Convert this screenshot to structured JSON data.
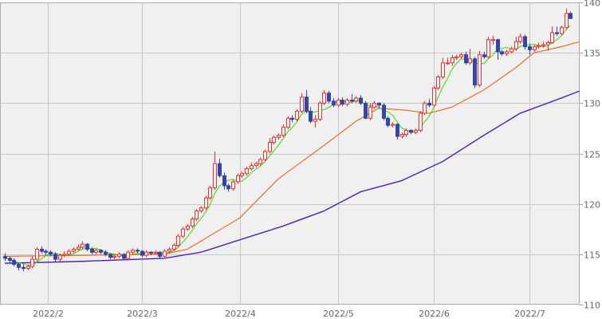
{
  "chart_data": {
    "type": "candlestick",
    "title": "",
    "ylim": [
      110,
      140
    ],
    "y_ticks": [
      "110",
      "115",
      "120",
      "125",
      "130",
      "135",
      "140"
    ],
    "x_ticks": [
      {
        "label": "2022/2",
        "index": 9.5
      },
      {
        "label": "2022/3",
        "index": 30
      },
      {
        "label": "2022/4",
        "index": 51.5
      },
      {
        "label": "2022/5",
        "index": 73
      },
      {
        "label": "2022/6",
        "index": 94
      },
      {
        "label": "2022/7",
        "index": 115
      }
    ],
    "grid": true,
    "colors": {
      "up": "#ff2a2a",
      "down": "#3344aa",
      "ma_short": "#33dd00",
      "ma_mid": "#ee5500",
      "ma_long": "#4411bb",
      "background": "#f0f0f0",
      "grid": "#c8c8c8"
    },
    "candles": [
      [
        114.8,
        115.1,
        114.3,
        114.6
      ],
      [
        114.6,
        114.8,
        114.1,
        114.4
      ],
      [
        114.4,
        114.6,
        113.8,
        114.0
      ],
      [
        114.0,
        114.2,
        113.4,
        113.7
      ],
      [
        113.7,
        114.0,
        113.3,
        113.6
      ],
      [
        113.6,
        114.0,
        113.4,
        113.8
      ],
      [
        113.8,
        114.8,
        113.6,
        114.5
      ],
      [
        114.5,
        115.7,
        114.3,
        115.5
      ],
      [
        115.5,
        115.8,
        115.1,
        115.3
      ],
      [
        115.3,
        115.5,
        114.9,
        115.2
      ],
      [
        115.2,
        115.4,
        114.8,
        115.0
      ],
      [
        115.0,
        115.2,
        114.2,
        114.5
      ],
      [
        114.5,
        115.1,
        114.3,
        114.9
      ],
      [
        114.9,
        115.3,
        114.7,
        115.0
      ],
      [
        115.0,
        115.5,
        114.8,
        115.3
      ],
      [
        115.3,
        115.7,
        115.1,
        115.5
      ],
      [
        115.5,
        116.0,
        115.3,
        115.7
      ],
      [
        115.7,
        116.3,
        115.5,
        116.0
      ],
      [
        116.0,
        116.1,
        115.3,
        115.5
      ],
      [
        115.5,
        115.7,
        115.0,
        115.2
      ],
      [
        115.2,
        115.6,
        115.0,
        115.4
      ],
      [
        115.4,
        115.5,
        115.0,
        115.2
      ],
      [
        115.2,
        115.4,
        114.8,
        115.0
      ],
      [
        115.0,
        115.1,
        114.5,
        114.7
      ],
      [
        114.7,
        115.0,
        114.5,
        114.8
      ],
      [
        114.8,
        115.2,
        114.6,
        115.0
      ],
      [
        115.0,
        115.1,
        114.4,
        114.6
      ],
      [
        114.6,
        115.4,
        114.4,
        115.2
      ],
      [
        115.2,
        115.6,
        115.0,
        115.4
      ],
      [
        115.4,
        115.6,
        115.1,
        115.3
      ],
      [
        115.3,
        115.4,
        114.7,
        114.9
      ],
      [
        114.9,
        115.4,
        114.7,
        115.2
      ],
      [
        115.2,
        115.3,
        114.9,
        115.1
      ],
      [
        115.1,
        115.4,
        115.0,
        115.2
      ],
      [
        115.2,
        115.3,
        114.5,
        114.8
      ],
      [
        114.8,
        115.5,
        114.7,
        115.3
      ],
      [
        115.3,
        115.7,
        115.1,
        115.5
      ],
      [
        115.5,
        116.1,
        115.3,
        115.9
      ],
      [
        115.9,
        117.0,
        115.7,
        116.8
      ],
      [
        116.8,
        117.7,
        116.6,
        117.5
      ],
      [
        117.5,
        118.0,
        117.3,
        117.8
      ],
      [
        117.8,
        118.7,
        117.6,
        118.5
      ],
      [
        118.5,
        119.5,
        118.3,
        119.3
      ],
      [
        119.3,
        119.8,
        119.1,
        119.6
      ],
      [
        119.6,
        120.8,
        119.4,
        120.6
      ],
      [
        120.6,
        121.8,
        120.4,
        121.6
      ],
      [
        121.6,
        125.2,
        121.4,
        124.0
      ],
      [
        124.0,
        124.5,
        122.6,
        122.8
      ],
      [
        122.8,
        123.1,
        121.4,
        121.8
      ],
      [
        121.8,
        122.0,
        121.2,
        121.5
      ],
      [
        121.5,
        122.4,
        121.3,
        122.2
      ],
      [
        122.2,
        123.0,
        122.0,
        122.8
      ],
      [
        122.8,
        123.2,
        122.6,
        123.0
      ],
      [
        123.0,
        123.7,
        122.8,
        123.5
      ],
      [
        123.5,
        124.1,
        123.3,
        123.8
      ],
      [
        123.8,
        124.2,
        123.6,
        124.0
      ],
      [
        124.0,
        124.6,
        123.8,
        124.4
      ],
      [
        124.4,
        125.4,
        124.2,
        125.2
      ],
      [
        125.2,
        126.5,
        125.0,
        126.1
      ],
      [
        126.1,
        126.8,
        125.9,
        126.6
      ],
      [
        126.6,
        127.0,
        126.4,
        126.8
      ],
      [
        126.8,
        127.9,
        126.6,
        127.6
      ],
      [
        127.6,
        128.7,
        127.4,
        128.5
      ],
      [
        128.5,
        128.8,
        128.1,
        128.4
      ],
      [
        128.4,
        129.4,
        128.2,
        129.2
      ],
      [
        129.2,
        131.0,
        129.0,
        130.6
      ],
      [
        130.6,
        131.3,
        129.0,
        129.2
      ],
      [
        129.2,
        129.6,
        128.0,
        128.2
      ],
      [
        128.2,
        128.8,
        127.6,
        128.4
      ],
      [
        128.4,
        130.2,
        128.2,
        130.0
      ],
      [
        130.0,
        131.3,
        129.8,
        131.0
      ],
      [
        131.0,
        131.2,
        130.0,
        130.2
      ],
      [
        130.2,
        130.5,
        129.6,
        129.8
      ],
      [
        129.8,
        130.5,
        129.6,
        130.3
      ],
      [
        130.3,
        130.6,
        129.7,
        129.9
      ],
      [
        129.9,
        130.5,
        129.7,
        130.3
      ],
      [
        130.3,
        130.9,
        130.0,
        130.2
      ],
      [
        130.2,
        130.7,
        130.0,
        130.5
      ],
      [
        130.5,
        130.8,
        129.8,
        130.0
      ],
      [
        130.0,
        130.2,
        128.4,
        128.5
      ],
      [
        128.5,
        130.0,
        128.3,
        129.6
      ],
      [
        129.6,
        130.2,
        129.4,
        130.0
      ],
      [
        130.0,
        130.1,
        129.5,
        129.8
      ],
      [
        129.8,
        130.0,
        128.3,
        128.5
      ],
      [
        128.5,
        128.7,
        127.6,
        127.8
      ],
      [
        127.8,
        128.1,
        127.6,
        127.9
      ],
      [
        127.9,
        128.0,
        126.4,
        126.7
      ],
      [
        126.7,
        127.1,
        126.5,
        126.9
      ],
      [
        126.9,
        127.5,
        126.7,
        127.3
      ],
      [
        127.3,
        127.4,
        126.9,
        127.1
      ],
      [
        127.1,
        127.5,
        126.9,
        127.3
      ],
      [
        127.3,
        129.2,
        127.1,
        129.0
      ],
      [
        129.0,
        130.2,
        128.8,
        130.0
      ],
      [
        130.0,
        130.4,
        129.6,
        129.8
      ],
      [
        129.8,
        131.7,
        129.6,
        131.5
      ],
      [
        131.5,
        132.8,
        131.3,
        132.6
      ],
      [
        132.6,
        134.5,
        132.4,
        134.0
      ],
      [
        134.0,
        134.5,
        133.8,
        134.0
      ],
      [
        134.0,
        134.8,
        133.7,
        134.5
      ],
      [
        134.5,
        134.8,
        134.3,
        134.6
      ],
      [
        134.6,
        135.0,
        134.4,
        134.8
      ],
      [
        134.8,
        135.1,
        133.8,
        134.0
      ],
      [
        134.0,
        135.4,
        133.8,
        134.4
      ],
      [
        134.4,
        134.6,
        131.5,
        131.8
      ],
      [
        131.8,
        135.2,
        131.6,
        134.8
      ],
      [
        134.8,
        135.1,
        134.4,
        134.6
      ],
      [
        134.6,
        136.6,
        134.4,
        136.3
      ],
      [
        136.3,
        136.7,
        135.8,
        136.3
      ],
      [
        136.3,
        136.4,
        134.3,
        135.1
      ],
      [
        135.1,
        135.3,
        134.7,
        134.9
      ],
      [
        134.9,
        135.3,
        134.7,
        135.1
      ],
      [
        135.1,
        135.6,
        134.9,
        135.4
      ],
      [
        135.4,
        136.6,
        135.2,
        136.1
      ],
      [
        136.1,
        136.9,
        135.9,
        136.6
      ],
      [
        136.6,
        136.8,
        135.3,
        135.6
      ],
      [
        135.6,
        135.9,
        134.8,
        135.3
      ],
      [
        135.3,
        135.8,
        135.1,
        135.6
      ],
      [
        135.6,
        136.0,
        135.4,
        135.7
      ],
      [
        135.7,
        136.1,
        135.5,
        135.8
      ],
      [
        135.8,
        136.2,
        135.2,
        136.0
      ],
      [
        136.0,
        137.6,
        135.9,
        137.0
      ],
      [
        137.0,
        137.6,
        136.7,
        136.9
      ],
      [
        136.9,
        137.7,
        136.7,
        137.5
      ],
      [
        137.5,
        139.4,
        137.3,
        138.9
      ],
      [
        138.9,
        139.1,
        138.4,
        138.4
      ]
    ],
    "ma_mid": [
      [
        0,
        114.8
      ],
      [
        35,
        115.0
      ],
      [
        40,
        115.5
      ],
      [
        51.5,
        118.6
      ],
      [
        60,
        122.5
      ],
      [
        70,
        125.8
      ],
      [
        77,
        128.2
      ],
      [
        82,
        129.5
      ],
      [
        88,
        129.3
      ],
      [
        93,
        129.0
      ],
      [
        98,
        129.6
      ],
      [
        105,
        131.3
      ],
      [
        112,
        133.5
      ],
      [
        116,
        135.0
      ],
      [
        122,
        135.6
      ],
      [
        126,
        136.1
      ]
    ],
    "ma_long": [
      [
        0,
        114.1
      ],
      [
        17,
        114.3
      ],
      [
        35,
        114.6
      ],
      [
        43,
        115.2
      ],
      [
        52,
        116.5
      ],
      [
        61,
        117.8
      ],
      [
        70,
        119.3
      ],
      [
        78,
        121.2
      ],
      [
        87,
        122.3
      ],
      [
        96,
        124.2
      ],
      [
        105,
        126.8
      ],
      [
        113,
        129.0
      ],
      [
        122,
        130.5
      ],
      [
        126,
        131.2
      ]
    ],
    "ma_short_period": 5
  }
}
